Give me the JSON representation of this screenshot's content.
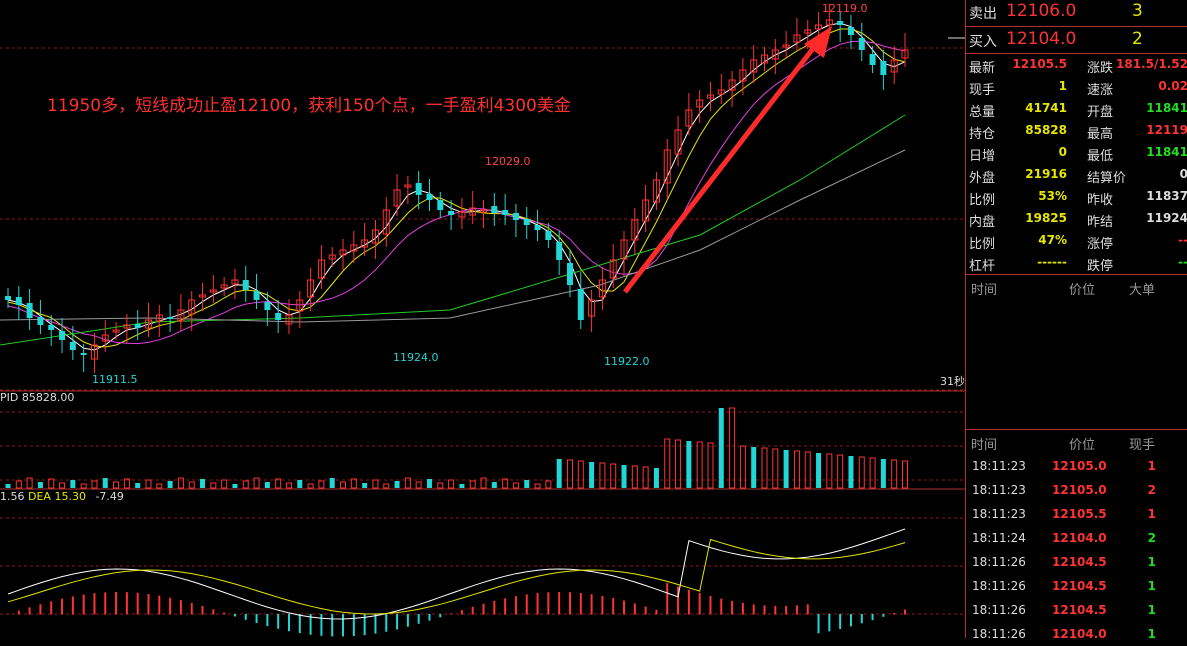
{
  "annotation": "11950多，短线成功止盈12100，获利150个点，一手盈利4300美金",
  "price_labels": {
    "high_main": "12119.0",
    "peak_mid": "12029.0",
    "low_1": "11911.5",
    "low_2": "11924.0",
    "low_3": "11922.0"
  },
  "period_label": "31秒",
  "volume_title": "PID 85828.00",
  "macd_title": {
    "diff": "1.56",
    "dea_label": "DEA",
    "dea": "15.30",
    "macd": "-7.49"
  },
  "order_book": {
    "sell": {
      "label": "卖出",
      "price": "12106.0",
      "qty": "3"
    },
    "buy": {
      "label": "买入",
      "price": "12104.0",
      "qty": "2"
    }
  },
  "stats_left": [
    {
      "k": "最新",
      "v": "12105.5",
      "c": "#ff3333"
    },
    {
      "k": "现手",
      "v": "1",
      "c": "#e6e600"
    },
    {
      "k": "总量",
      "v": "41741",
      "c": "#e6e600"
    },
    {
      "k": "持仓",
      "v": "85828",
      "c": "#e6e600"
    },
    {
      "k": "日增",
      "v": "0",
      "c": "#e6e600"
    },
    {
      "k": "外盘",
      "v": "21916",
      "c": "#e6e600"
    },
    {
      "k": "比例",
      "v": "53%",
      "c": "#e6e600"
    },
    {
      "k": "内盘",
      "v": "19825",
      "c": "#e6e600"
    },
    {
      "k": "比例",
      "v": "47%",
      "c": "#e6e600"
    },
    {
      "k": "杠杆",
      "v": "------",
      "c": "#e6e600"
    }
  ],
  "stats_right": [
    {
      "k": "涨跌",
      "v": "181.5/1.52",
      "c": "#ff3333"
    },
    {
      "k": "速涨",
      "v": "0.02",
      "c": "#ff3333"
    },
    {
      "k": "开盘",
      "v": "11841",
      "c": "#22dd22"
    },
    {
      "k": "最高",
      "v": "12119",
      "c": "#ff3333"
    },
    {
      "k": "最低",
      "v": "11841",
      "c": "#22dd22"
    },
    {
      "k": "结算价",
      "v": "0",
      "c": "#dddddd"
    },
    {
      "k": "昨收",
      "v": "11837",
      "c": "#dddddd"
    },
    {
      "k": "昨结",
      "v": "11924",
      "c": "#dddddd"
    },
    {
      "k": "涨停",
      "v": "--",
      "c": "#ff3333"
    },
    {
      "k": "跌停",
      "v": "--",
      "c": "#22dd22"
    }
  ],
  "big_orders_header": {
    "time": "时间",
    "price": "价位",
    "size": "大单"
  },
  "trades_header": {
    "time": "时间",
    "price": "价位",
    "qty": "现手"
  },
  "trades": [
    {
      "time": "18:11:23",
      "price": "12105.0",
      "qty": "1",
      "color": "#ff3333"
    },
    {
      "time": "18:11:23",
      "price": "12105.0",
      "qty": "2",
      "color": "#ff3333"
    },
    {
      "time": "18:11:23",
      "price": "12105.5",
      "qty": "1",
      "color": "#ff3333"
    },
    {
      "time": "18:11:24",
      "price": "12104.0",
      "qty": "2",
      "color": "#22dd22"
    },
    {
      "time": "18:11:26",
      "price": "12104.5",
      "qty": "1",
      "color": "#22dd22"
    },
    {
      "time": "18:11:26",
      "price": "12104.5",
      "qty": "1",
      "color": "#22dd22"
    },
    {
      "time": "18:11:26",
      "price": "12104.5",
      "qty": "1",
      "color": "#22dd22"
    },
    {
      "time": "18:11:26",
      "price": "12104.0",
      "qty": "1",
      "color": "#22dd22"
    }
  ],
  "colors": {
    "up": "#ff3333",
    "down": "#22d6d6",
    "grid": "#8b1a1a",
    "arrow": "#ff2a2a"
  }
}
